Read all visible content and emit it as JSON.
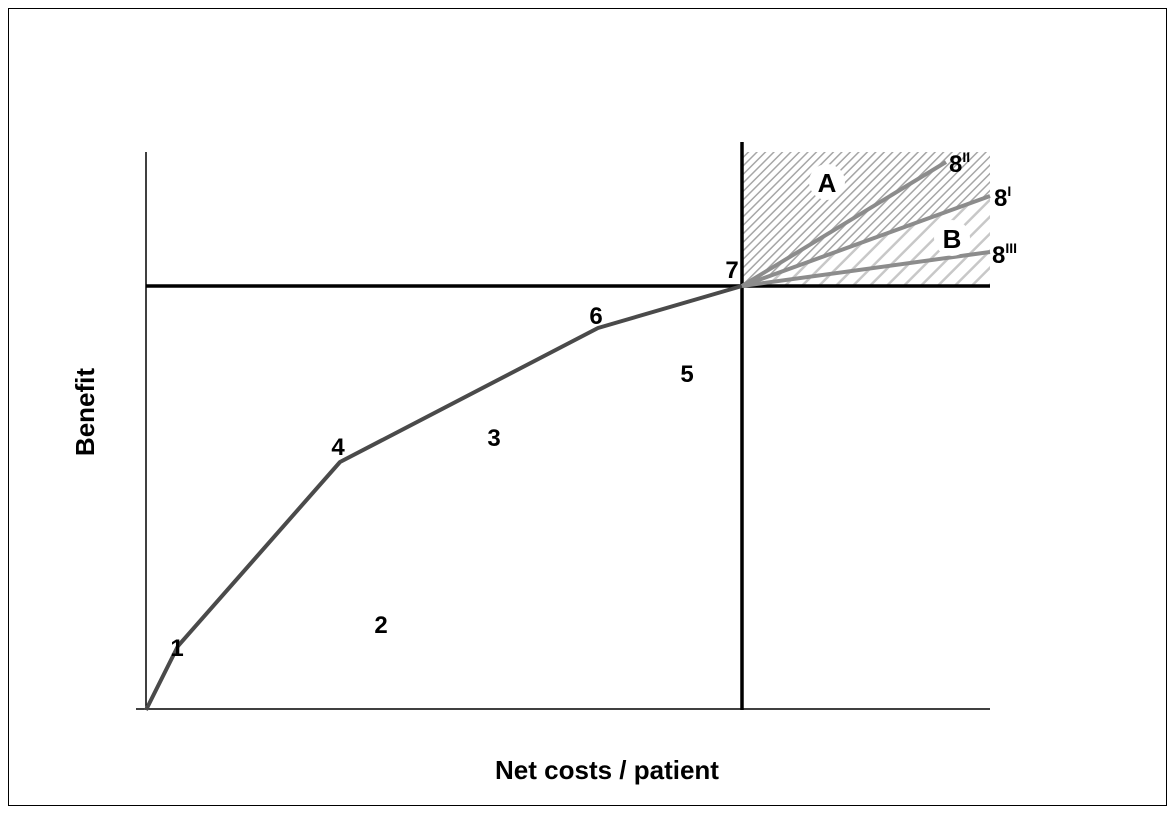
{
  "diagram": {
    "x_axis_label": "Net costs / patient",
    "y_axis_label": "Benefit",
    "colors": {
      "frontier": "#4a4a4a",
      "rays": "#8c8c8c",
      "axes": "#000000",
      "hatch_a": "#a6a6a6",
      "hatch_b": "#c8c8c8"
    },
    "points": [
      {
        "label": "1"
      },
      {
        "label": "2"
      },
      {
        "label": "3"
      },
      {
        "label": "4"
      },
      {
        "label": "5"
      },
      {
        "label": "6"
      },
      {
        "label": "7"
      }
    ],
    "rays": [
      {
        "base": "8",
        "sup": "II"
      },
      {
        "base": "8",
        "sup": "I"
      },
      {
        "base": "8",
        "sup": "III"
      }
    ],
    "regions": [
      {
        "label": "A"
      },
      {
        "label": "B"
      }
    ]
  }
}
